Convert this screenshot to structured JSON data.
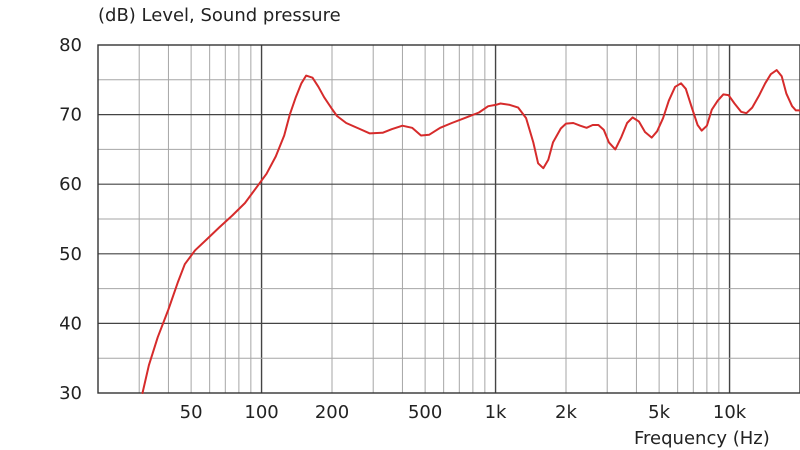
{
  "chart_data": {
    "type": "line",
    "title": "(dB)  Level, Sound pressure",
    "xlabel": "Frequency  (Hz)",
    "ylabel": "",
    "xscale": "log",
    "xlim": [
      20,
      20000
    ],
    "ylim": [
      30,
      80
    ],
    "grid": true,
    "x_tick_labels": [
      {
        "value": 50,
        "label": "50"
      },
      {
        "value": 100,
        "label": "100"
      },
      {
        "value": 200,
        "label": "200"
      },
      {
        "value": 500,
        "label": "500"
      },
      {
        "value": 1000,
        "label": "1k"
      },
      {
        "value": 2000,
        "label": "2k"
      },
      {
        "value": 5000,
        "label": "5k"
      },
      {
        "value": 10000,
        "label": "10k"
      }
    ],
    "y_tick_labels": [
      {
        "value": 30,
        "label": "30"
      },
      {
        "value": 40,
        "label": "40"
      },
      {
        "value": 50,
        "label": "50"
      },
      {
        "value": 60,
        "label": "60"
      },
      {
        "value": 70,
        "label": "70"
      },
      {
        "value": 80,
        "label": "80"
      }
    ],
    "series": [
      {
        "color": "#d62b2b",
        "points": [
          [
            31,
            30
          ],
          [
            33,
            34
          ],
          [
            36,
            38
          ],
          [
            40,
            42
          ],
          [
            44,
            46
          ],
          [
            47,
            48.5
          ],
          [
            52,
            50.5
          ],
          [
            58,
            52
          ],
          [
            66,
            53.8
          ],
          [
            75,
            55.5
          ],
          [
            85,
            57.3
          ],
          [
            95,
            59.5
          ],
          [
            105,
            61.5
          ],
          [
            115,
            64
          ],
          [
            125,
            67
          ],
          [
            132,
            70
          ],
          [
            140,
            72.5
          ],
          [
            148,
            74.5
          ],
          [
            155,
            75.6
          ],
          [
            165,
            75.3
          ],
          [
            175,
            74
          ],
          [
            185,
            72.5
          ],
          [
            200,
            70.8
          ],
          [
            210,
            69.8
          ],
          [
            230,
            68.8
          ],
          [
            260,
            68
          ],
          [
            290,
            67.3
          ],
          [
            330,
            67.4
          ],
          [
            360,
            67.9
          ],
          [
            400,
            68.4
          ],
          [
            440,
            68.1
          ],
          [
            480,
            67
          ],
          [
            520,
            67.1
          ],
          [
            580,
            68.1
          ],
          [
            650,
            68.8
          ],
          [
            750,
            69.6
          ],
          [
            850,
            70.3
          ],
          [
            930,
            71.2
          ],
          [
            1000,
            71.4
          ],
          [
            1050,
            71.6
          ],
          [
            1150,
            71.4
          ],
          [
            1250,
            71
          ],
          [
            1350,
            69.5
          ],
          [
            1450,
            66
          ],
          [
            1520,
            63
          ],
          [
            1600,
            62.3
          ],
          [
            1680,
            63.5
          ],
          [
            1760,
            66
          ],
          [
            1900,
            68
          ],
          [
            2000,
            68.7
          ],
          [
            2150,
            68.8
          ],
          [
            2300,
            68.4
          ],
          [
            2450,
            68.1
          ],
          [
            2600,
            68.5
          ],
          [
            2750,
            68.5
          ],
          [
            2900,
            67.8
          ],
          [
            3050,
            66
          ],
          [
            3250,
            65
          ],
          [
            3450,
            66.8
          ],
          [
            3650,
            68.8
          ],
          [
            3850,
            69.6
          ],
          [
            4100,
            69
          ],
          [
            4350,
            67.5
          ],
          [
            4650,
            66.7
          ],
          [
            4900,
            67.6
          ],
          [
            5200,
            69.5
          ],
          [
            5500,
            72
          ],
          [
            5850,
            74
          ],
          [
            6200,
            74.5
          ],
          [
            6500,
            73.7
          ],
          [
            6900,
            71
          ],
          [
            7300,
            68.5
          ],
          [
            7600,
            67.7
          ],
          [
            8000,
            68.4
          ],
          [
            8400,
            70.7
          ],
          [
            8900,
            72
          ],
          [
            9400,
            72.9
          ],
          [
            9900,
            72.8
          ],
          [
            10500,
            71.6
          ],
          [
            11200,
            70.4
          ],
          [
            11800,
            70.2
          ],
          [
            12500,
            71
          ],
          [
            13400,
            72.8
          ],
          [
            14200,
            74.5
          ],
          [
            15000,
            75.8
          ],
          [
            15900,
            76.4
          ],
          [
            16700,
            75.5
          ],
          [
            17500,
            73
          ],
          [
            18500,
            71.2
          ],
          [
            19200,
            70.6
          ],
          [
            20000,
            70.6
          ]
        ]
      }
    ]
  }
}
